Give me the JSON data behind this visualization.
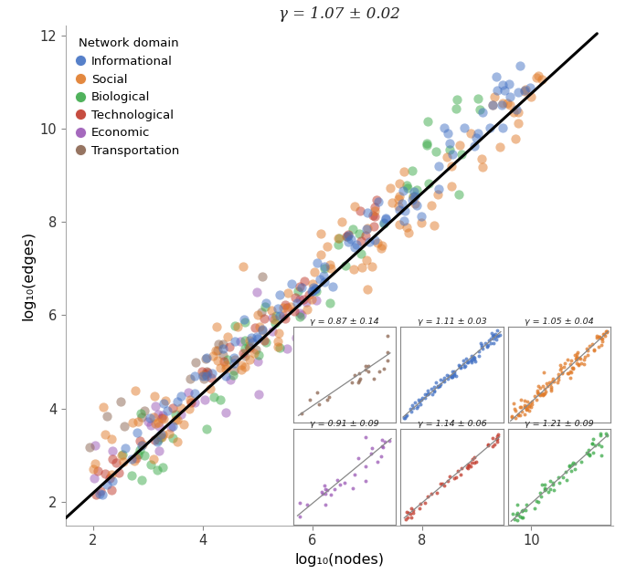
{
  "title": "γ = 1.07 ± 0.02",
  "xlabel": "log₁₀(nodes)",
  "ylabel": "log₁₀(edges)",
  "xlim": [
    1.5,
    11.5
  ],
  "ylim": [
    1.5,
    12.2
  ],
  "xticks": [
    2,
    4,
    6,
    8,
    10
  ],
  "yticks": [
    2,
    4,
    6,
    8,
    10,
    12
  ],
  "fit_slope": 1.07,
  "fit_intercept": 0.05,
  "colors": {
    "Informational": "#4472C4",
    "Social": "#E07B2A",
    "Biological": "#3DAA4A",
    "Technological": "#C0392B",
    "Economic": "#9B59B6",
    "Transportation": "#8B6550"
  },
  "legend_order": [
    "Informational",
    "Social",
    "Biological",
    "Technological",
    "Economic",
    "Transportation"
  ],
  "subplot_gammas": {
    "Transportation": "0.87 ± 0.14",
    "Informational": "1.11 ± 0.03",
    "Social": "1.05 ± 0.04",
    "Economic": "0.91 ± 0.09",
    "Technological": "1.14 ± 0.06",
    "Biological": "1.21 ± 0.09"
  },
  "subplot_order": [
    [
      "Transportation",
      "Informational",
      "Social"
    ],
    [
      "Economic",
      "Technological",
      "Biological"
    ]
  ],
  "background_color": "#ffffff",
  "point_alpha": 0.5,
  "point_size": 55,
  "subplot_point_size": 8,
  "subplot_alpha": 0.75
}
